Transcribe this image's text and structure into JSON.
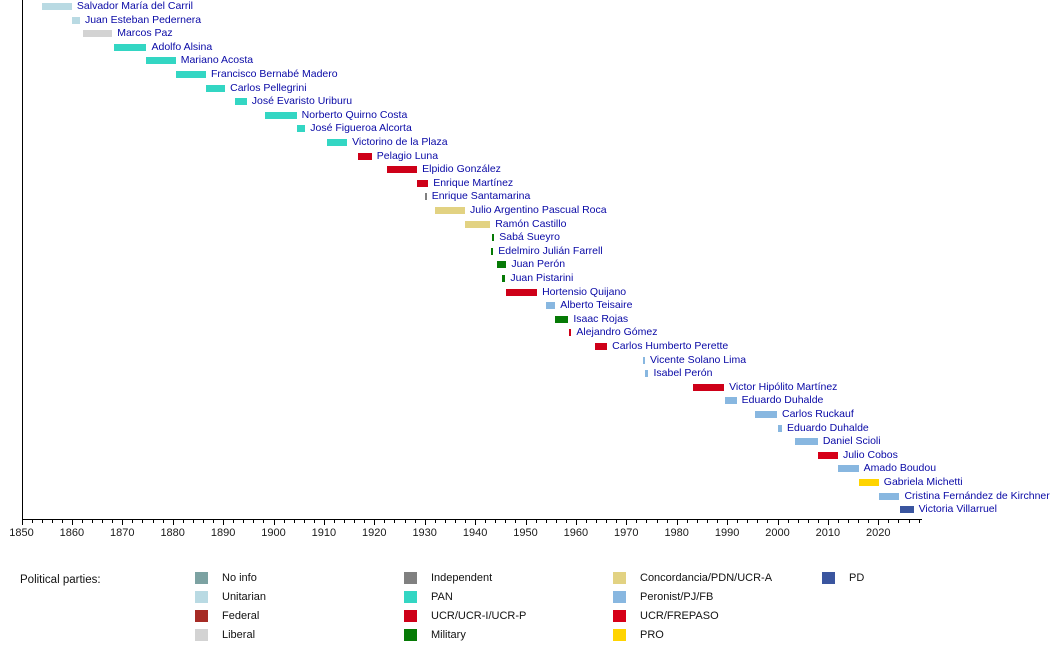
{
  "colors": {
    "background": "#FFFFFF",
    "axis_line": "#000000",
    "axis_text": "#1A1A1A",
    "name_text": "#0909A6"
  },
  "party_colors": {
    "noinfo": "#7CA2A2",
    "unitarian": "#B9DAE3",
    "federal": "#A62B25",
    "liberal": "#D3D3D3",
    "independent": "#808080",
    "pan": "#33D6C3",
    "ucr": "#CE0018",
    "military": "#067A06",
    "concordancia": "#E2D282",
    "peronist": "#88B7E0",
    "frepaso": "#D60018",
    "pro": "#FFD400",
    "pd": "#3A559F"
  },
  "legend": {
    "title": "Political parties:",
    "columns": [
      {
        "items": [
          {
            "label": "No info",
            "party": "noinfo"
          },
          {
            "label": "Unitarian",
            "party": "unitarian"
          },
          {
            "label": "Federal",
            "party": "federal"
          },
          {
            "label": "Liberal",
            "party": "liberal"
          }
        ]
      },
      {
        "items": [
          {
            "label": "Independent",
            "party": "independent"
          },
          {
            "label": "PAN",
            "party": "pan"
          },
          {
            "label": "UCR/UCR-I/UCR-P",
            "party": "ucr"
          },
          {
            "label": "Military",
            "party": "military"
          }
        ]
      },
      {
        "items": [
          {
            "label": "Concordancia/PDN/UCR-A",
            "party": "concordancia"
          },
          {
            "label": "Peronist/PJ/FB",
            "party": "peronist"
          },
          {
            "label": "UCR/FREPASO",
            "party": "frepaso"
          },
          {
            "label": "PRO",
            "party": "pro"
          }
        ]
      },
      {
        "items": [
          {
            "label": "PD",
            "party": "pd"
          }
        ]
      }
    ]
  },
  "chart_data": {
    "type": "timeline",
    "orientation": "horizontal-gantt",
    "axis": {
      "start": 1850,
      "end": 2028.6,
      "major_tick_every": 10,
      "minor_tick_every": 2,
      "tick_labels": [
        "1850",
        "1860",
        "1870",
        "1880",
        "1890",
        "1900",
        "1910",
        "1920",
        "1930",
        "1940",
        "1950",
        "1960",
        "1970",
        "1980",
        "1990",
        "2000",
        "2010",
        "2020"
      ]
    },
    "people": [
      {
        "name": "Salvador María del Carril",
        "party": "unitarian",
        "start": 1854.0,
        "end": 1860.0
      },
      {
        "name": "Juan Esteban Pedernera",
        "party": "unitarian",
        "start": 1860.0,
        "end": 1861.6
      },
      {
        "name": "Marcos Paz",
        "party": "liberal",
        "start": 1862.3,
        "end": 1868.0
      },
      {
        "name": "Adolfo Alsina",
        "party": "pan",
        "start": 1868.3,
        "end": 1874.8
      },
      {
        "name": "Mariano Acosta",
        "party": "pan",
        "start": 1874.8,
        "end": 1880.6
      },
      {
        "name": "Francisco Bernabé Madero",
        "party": "pan",
        "start": 1880.6,
        "end": 1886.6
      },
      {
        "name": "Carlos Pellegrini",
        "party": "pan",
        "start": 1886.6,
        "end": 1890.4
      },
      {
        "name": "José Evaristo Uriburu",
        "party": "pan",
        "start": 1892.4,
        "end": 1894.7
      },
      {
        "name": "Norberto Quirno Costa",
        "party": "pan",
        "start": 1898.4,
        "end": 1904.6
      },
      {
        "name": "José Figueroa Alcorta",
        "party": "pan",
        "start": 1904.6,
        "end": 1906.3
      },
      {
        "name": "Victorino de la Plaza",
        "party": "pan",
        "start": 1910.7,
        "end": 1914.6
      },
      {
        "name": "Pelagio Luna",
        "party": "ucr",
        "start": 1916.8,
        "end": 1919.5
      },
      {
        "name": "Elpidio González",
        "party": "ucr",
        "start": 1922.6,
        "end": 1928.5
      },
      {
        "name": "Enrique Martínez",
        "party": "ucr",
        "start": 1928.5,
        "end": 1930.7
      },
      {
        "name": "Enrique Santamarina",
        "party": "independent",
        "start": 1930.1,
        "end": 1930.4
      },
      {
        "name": "Julio Argentino Pascual Roca",
        "party": "concordancia",
        "start": 1932.1,
        "end": 1938.0
      },
      {
        "name": "Ramón Castillo",
        "party": "concordancia",
        "start": 1938.0,
        "end": 1943.0
      },
      {
        "name": "Sabá Sueyro",
        "party": "military",
        "start": 1943.4,
        "end": 1943.8
      },
      {
        "name": "Edelmiro Julián Farrell",
        "party": "military",
        "start": 1943.2,
        "end": 1943.6
      },
      {
        "name": "Juan Perón",
        "party": "military",
        "start": 1944.3,
        "end": 1946.2
      },
      {
        "name": "Juan Pistarini",
        "party": "military",
        "start": 1945.3,
        "end": 1946.0
      },
      {
        "name": "Hortensio Quijano",
        "party": "ucr",
        "start": 1946.1,
        "end": 1952.3
      },
      {
        "name": "Alberto Teisaire",
        "party": "peronist",
        "start": 1954.1,
        "end": 1955.9
      },
      {
        "name": "Isaac Rojas",
        "party": "military",
        "start": 1955.9,
        "end": 1958.5
      },
      {
        "name": "Alejandro Gómez",
        "party": "ucr",
        "start": 1958.6,
        "end": 1959.1
      },
      {
        "name": "Carlos Humberto Perette",
        "party": "ucr",
        "start": 1963.8,
        "end": 1966.2
      },
      {
        "name": "Vicente Solano Lima",
        "party": "peronist",
        "start": 1973.4,
        "end": 1973.7
      },
      {
        "name": "Isabel Perón",
        "party": "peronist",
        "start": 1973.7,
        "end": 1974.4
      },
      {
        "name": "Victor Hipólito Martínez",
        "party": "ucr",
        "start": 1983.3,
        "end": 1989.4
      },
      {
        "name": "Eduardo Duhalde",
        "party": "peronist",
        "start": 1989.5,
        "end": 1991.9
      },
      {
        "name": "Carlos Ruckauf",
        "party": "peronist",
        "start": 1995.6,
        "end": 1999.9
      },
      {
        "name": "Eduardo Duhalde",
        "party": "peronist",
        "start": 2000.0,
        "end": 2000.9
      },
      {
        "name": "Daniel Scioli",
        "party": "peronist",
        "start": 2003.5,
        "end": 2008.0
      },
      {
        "name": "Julio Cobos",
        "party": "frepaso",
        "start": 2008.0,
        "end": 2012.0
      },
      {
        "name": "Amado Boudou",
        "party": "peronist",
        "start": 2012.1,
        "end": 2016.1
      },
      {
        "name": "Gabriela Michetti",
        "party": "pro",
        "start": 2016.1,
        "end": 2020.1
      },
      {
        "name": "Cristina Fernández de Kirchner",
        "party": "peronist",
        "start": 2020.2,
        "end": 2024.2
      },
      {
        "name": "Victoria Villarruel",
        "party": "pd",
        "start": 2024.3,
        "end": 2027.0
      }
    ]
  }
}
